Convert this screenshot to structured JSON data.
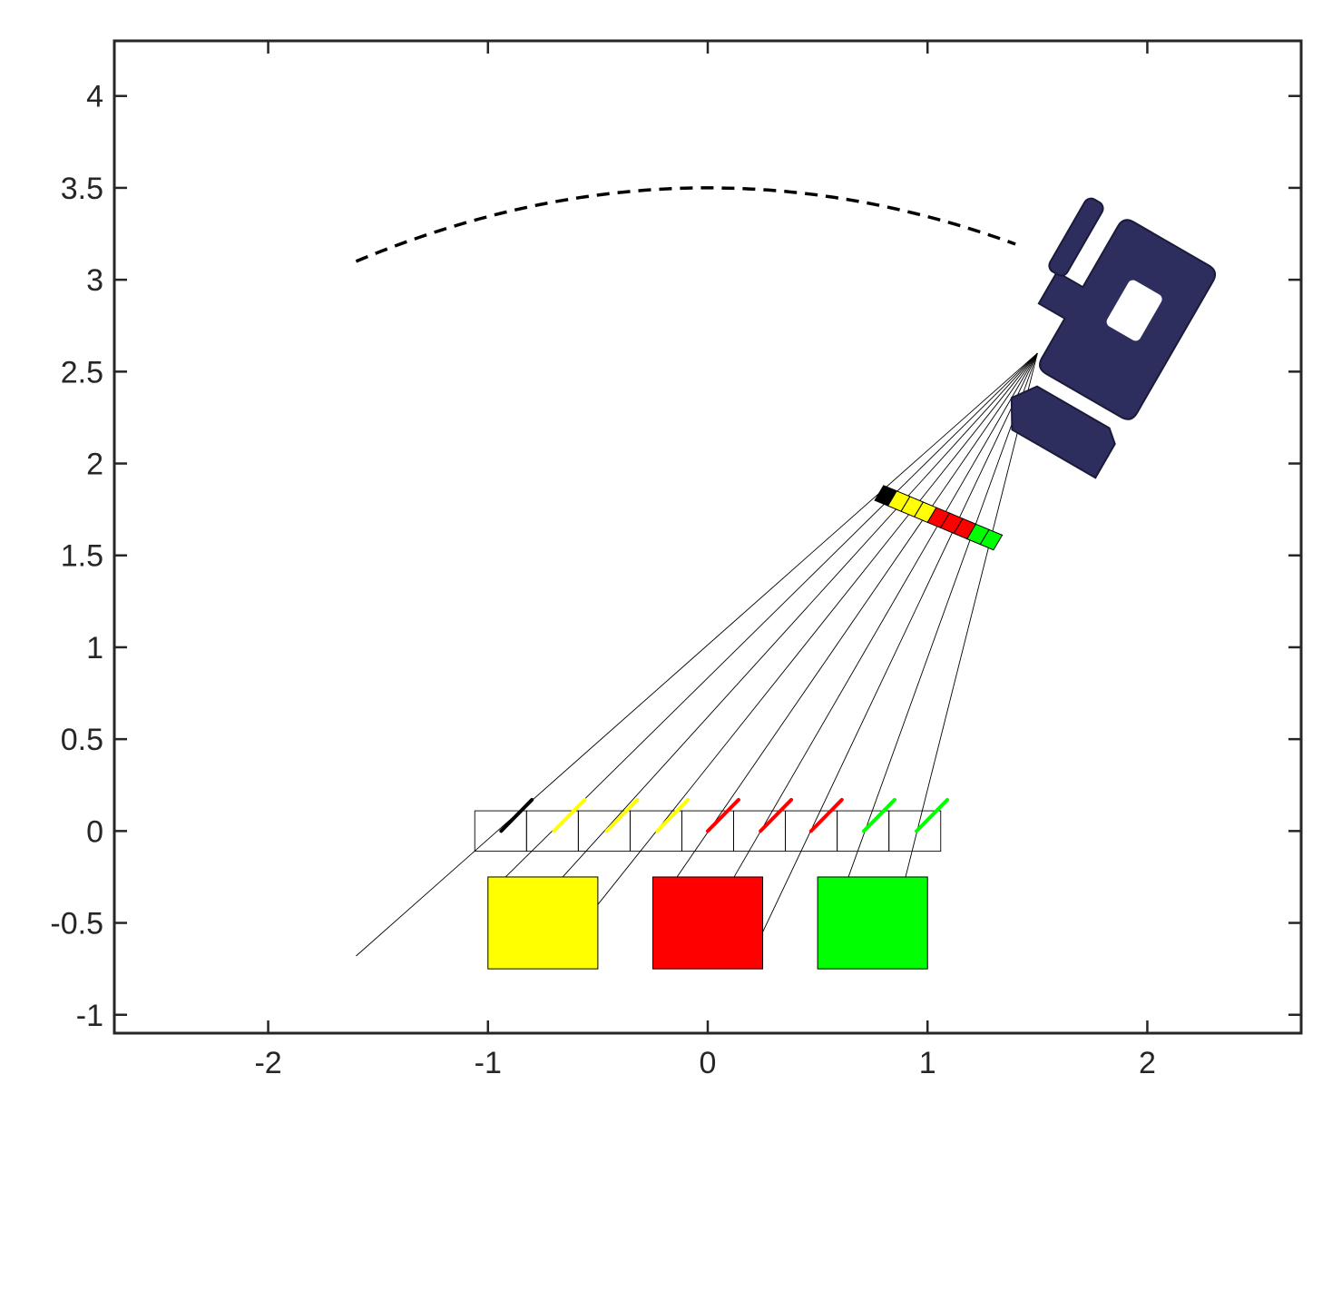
{
  "figure": {
    "axes": {
      "x_ticks": [
        {
          "value": -2,
          "label": "-2"
        },
        {
          "value": -1,
          "label": "-1"
        },
        {
          "value": 0,
          "label": "0"
        },
        {
          "value": 1,
          "label": "1"
        },
        {
          "value": 2,
          "label": "2"
        }
      ],
      "y_ticks": [
        {
          "value": 4,
          "label": "4"
        },
        {
          "value": 3.5,
          "label": "3.5"
        },
        {
          "value": 3,
          "label": "3"
        },
        {
          "value": 2.5,
          "label": "2.5"
        },
        {
          "value": 2,
          "label": "2"
        },
        {
          "value": 1.5,
          "label": "1.5"
        },
        {
          "value": 1,
          "label": "1"
        },
        {
          "value": 0.5,
          "label": "0.5"
        },
        {
          "value": 0,
          "label": "0"
        },
        {
          "value": -0.5,
          "label": "-0.5"
        },
        {
          "value": -1,
          "label": "-1"
        }
      ],
      "xlim": [
        -2.7,
        2.7
      ],
      "ylim": [
        -1.1,
        4.3
      ]
    },
    "colors": {
      "yellow": "#ffff00",
      "red": "#ff0000",
      "green": "#00ff00",
      "black": "#000000",
      "camera": "#2e2e5e"
    },
    "objects": [
      {
        "color": "yellow",
        "x_range": [
          -1.0,
          -0.5
        ],
        "y_range": [
          -0.75,
          -0.25
        ]
      },
      {
        "color": "red",
        "x_range": [
          -0.25,
          0.25
        ],
        "y_range": [
          -0.75,
          -0.25
        ]
      },
      {
        "color": "green",
        "x_range": [
          0.5,
          1.0
        ],
        "y_range": [
          -0.75,
          -0.25
        ]
      }
    ],
    "ground_cells": [
      "black",
      "yellow",
      "yellow",
      "yellow",
      "red",
      "red",
      "red",
      "green",
      "green"
    ],
    "sensor_cells": [
      "black",
      "yellow",
      "yellow",
      "yellow",
      "red",
      "red",
      "red",
      "green",
      "green"
    ],
    "camera_position": [
      1.5,
      2.6
    ],
    "trajectory": {
      "x_range": [
        -1.6,
        1.5
      ],
      "peak": [
        0,
        3.5
      ],
      "start_y": 3.1
    }
  }
}
